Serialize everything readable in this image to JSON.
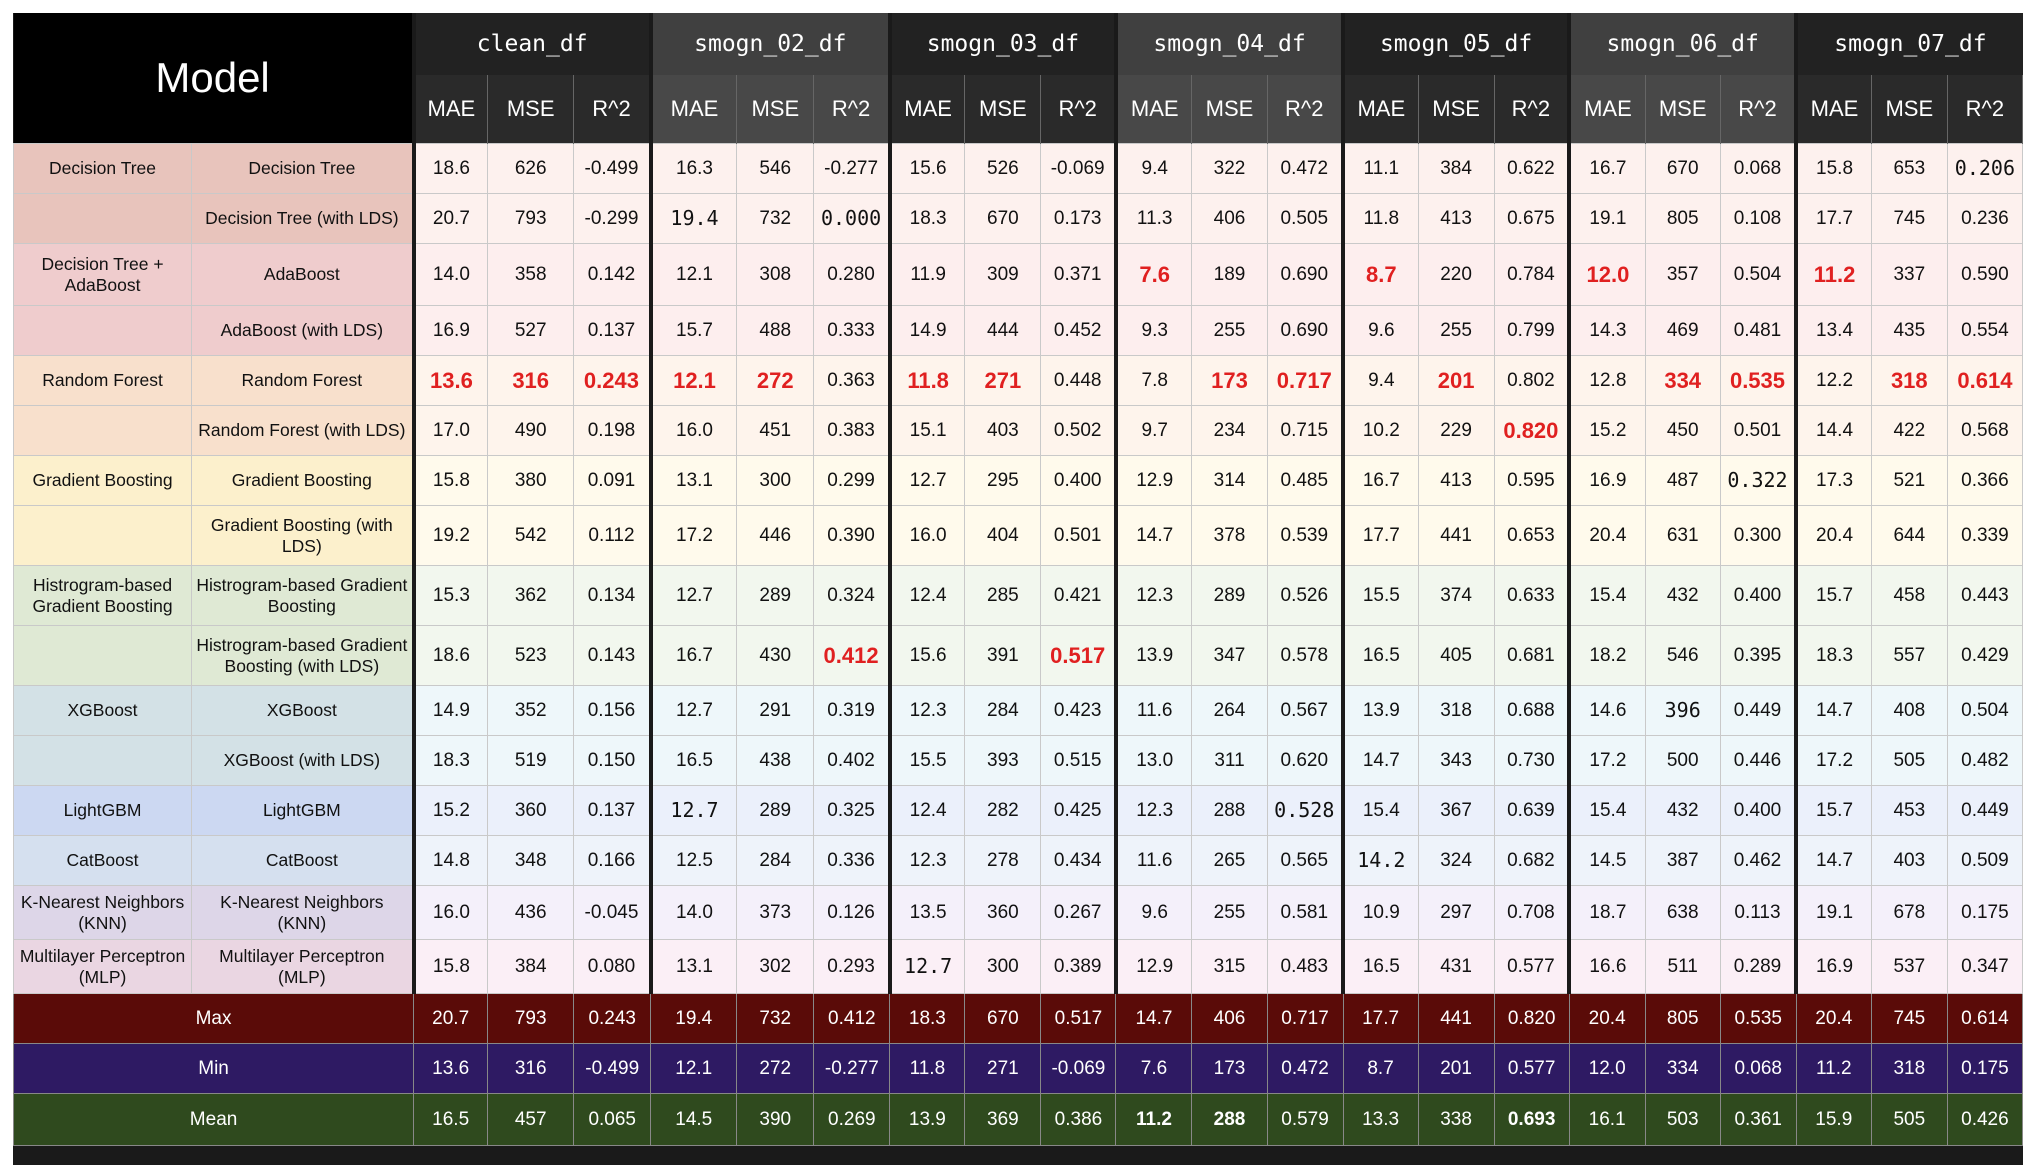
{
  "chart_data": {
    "type": "table",
    "header": {
      "model_label": "Model",
      "datasets": [
        "clean_df",
        "smogn_02_df",
        "smogn_03_df",
        "smogn_04_df",
        "smogn_05_df",
        "smogn_06_df",
        "smogn_07_df"
      ],
      "metrics": [
        "MAE",
        "MSE",
        "R^2"
      ]
    },
    "rows": [
      {
        "group": "Decision Tree",
        "model": "Decision Tree",
        "bg": "#e8c4bc",
        "cbg": "#fdf1ee",
        "values": [
          "18.6",
          "626",
          "-0.499",
          "16.3",
          "546",
          "-0.277",
          "15.6",
          "526",
          "-0.069",
          "9.4",
          "322",
          "0.472",
          "11.1",
          "384",
          "0.622",
          "16.7",
          "670",
          "0.068",
          "15.8",
          "653",
          "0.206"
        ]
      },
      {
        "group": "",
        "model": "Decision Tree (with LDS)",
        "bg": "#e8c4bc",
        "cbg": "#fdf1ee",
        "values": [
          "20.7",
          "793",
          "-0.299",
          "19.4",
          "732",
          "0.000",
          "18.3",
          "670",
          "0.173",
          "11.3",
          "406",
          "0.505",
          "11.8",
          "413",
          "0.675",
          "19.1",
          "805",
          "0.108",
          "17.7",
          "745",
          "0.236"
        ]
      },
      {
        "group": "Decision Tree + AdaBoost",
        "model": "AdaBoost",
        "bg": "#efcccd",
        "cbg": "#fdeeee",
        "values": [
          "14.0",
          "358",
          "0.142",
          "12.1",
          "308",
          "0.280",
          "11.9",
          "309",
          "0.371",
          "7.6",
          "189",
          "0.690",
          "8.7",
          "220",
          "0.784",
          "12.0",
          "357",
          "0.504",
          "11.2",
          "337",
          "0.590"
        ]
      },
      {
        "group": "",
        "model": "AdaBoost (with LDS)",
        "bg": "#efcccd",
        "cbg": "#fdeeee",
        "values": [
          "16.9",
          "527",
          "0.137",
          "15.7",
          "488",
          "0.333",
          "14.9",
          "444",
          "0.452",
          "9.3",
          "255",
          "0.690",
          "9.6",
          "255",
          "0.799",
          "14.3",
          "469",
          "0.481",
          "13.4",
          "435",
          "0.554"
        ]
      },
      {
        "group": "Random Forest",
        "model": "Random Forest",
        "bg": "#f8e0cc",
        "cbg": "#fef4ec",
        "values": [
          "13.6",
          "316",
          "0.243",
          "12.1",
          "272",
          "0.363",
          "11.8",
          "271",
          "0.448",
          "7.8",
          "173",
          "0.717",
          "9.4",
          "201",
          "0.802",
          "12.8",
          "334",
          "0.535",
          "12.2",
          "318",
          "0.614"
        ]
      },
      {
        "group": "",
        "model": "Random Forest (with LDS)",
        "bg": "#f8e0cc",
        "cbg": "#fef4ec",
        "values": [
          "17.0",
          "490",
          "0.198",
          "16.0",
          "451",
          "0.383",
          "15.1",
          "403",
          "0.502",
          "9.7",
          "234",
          "0.715",
          "10.2",
          "229",
          "0.820",
          "15.2",
          "450",
          "0.501",
          "14.4",
          "422",
          "0.568"
        ]
      },
      {
        "group": "Gradient Boosting",
        "model": "Gradient Boosting",
        "bg": "#fcf0cc",
        "cbg": "#fffaec",
        "values": [
          "15.8",
          "380",
          "0.091",
          "13.1",
          "300",
          "0.299",
          "12.7",
          "295",
          "0.400",
          "12.9",
          "314",
          "0.485",
          "16.7",
          "413",
          "0.595",
          "16.9",
          "487",
          "0.322",
          "17.3",
          "521",
          "0.366"
        ]
      },
      {
        "group": "",
        "model": "Gradient Boosting (with LDS)",
        "bg": "#fcf0cc",
        "cbg": "#fffaec",
        "values": [
          "19.2",
          "542",
          "0.112",
          "17.2",
          "446",
          "0.390",
          "16.0",
          "404",
          "0.501",
          "14.7",
          "378",
          "0.539",
          "17.7",
          "441",
          "0.653",
          "20.4",
          "631",
          "0.300",
          "20.4",
          "644",
          "0.339"
        ]
      },
      {
        "group": "Histrogram-based Gradient Boosting",
        "model": "Histrogram-based Gradient Boosting",
        "bg": "#dfe9d4",
        "cbg": "#f2f7ee",
        "values": [
          "15.3",
          "362",
          "0.134",
          "12.7",
          "289",
          "0.324",
          "12.4",
          "285",
          "0.421",
          "12.3",
          "289",
          "0.526",
          "15.5",
          "374",
          "0.633",
          "15.4",
          "432",
          "0.400",
          "15.7",
          "458",
          "0.443"
        ]
      },
      {
        "group": "",
        "model": "Histrogram-based Gradient Boosting (with LDS)",
        "bg": "#dfe9d4",
        "cbg": "#f2f7ee",
        "values": [
          "18.6",
          "523",
          "0.143",
          "16.7",
          "430",
          "0.412",
          "15.6",
          "391",
          "0.517",
          "13.9",
          "347",
          "0.578",
          "16.5",
          "405",
          "0.681",
          "18.2",
          "546",
          "0.395",
          "18.3",
          "557",
          "0.429"
        ]
      },
      {
        "group": "XGBoost",
        "model": "XGBoost",
        "bg": "#d3e1e6",
        "cbg": "#eef7fa",
        "values": [
          "14.9",
          "352",
          "0.156",
          "12.7",
          "291",
          "0.319",
          "12.3",
          "284",
          "0.423",
          "11.6",
          "264",
          "0.567",
          "13.9",
          "318",
          "0.688",
          "14.6",
          "396",
          "0.449",
          "14.7",
          "408",
          "0.504"
        ]
      },
      {
        "group": "",
        "model": "XGBoost (with LDS)",
        "bg": "#d3e1e6",
        "cbg": "#eef7fa",
        "values": [
          "18.3",
          "519",
          "0.150",
          "16.5",
          "438",
          "0.402",
          "15.5",
          "393",
          "0.515",
          "13.0",
          "311",
          "0.620",
          "14.7",
          "343",
          "0.730",
          "17.2",
          "500",
          "0.446",
          "17.2",
          "505",
          "0.482"
        ]
      },
      {
        "group": "LightGBM",
        "model": "LightGBM",
        "bg": "#ccd8f2",
        "cbg": "#ebf0fb",
        "values": [
          "15.2",
          "360",
          "0.137",
          "12.7",
          "289",
          "0.325",
          "12.4",
          "282",
          "0.425",
          "12.3",
          "288",
          "0.528",
          "15.4",
          "367",
          "0.639",
          "15.4",
          "432",
          "0.400",
          "15.7",
          "453",
          "0.449"
        ]
      },
      {
        "group": "CatBoost",
        "model": "CatBoost",
        "bg": "#d5e0ef",
        "cbg": "#eef3fa",
        "values": [
          "14.8",
          "348",
          "0.166",
          "12.5",
          "284",
          "0.336",
          "12.3",
          "278",
          "0.434",
          "11.6",
          "265",
          "0.565",
          "14.2",
          "324",
          "0.682",
          "14.5",
          "387",
          "0.462",
          "14.7",
          "403",
          "0.509"
        ]
      },
      {
        "group": "K-Nearest Neighbors (KNN)",
        "model": "K-Nearest Neighbors (KNN)",
        "bg": "#ddd6e8",
        "cbg": "#f4f0fa",
        "values": [
          "16.0",
          "436",
          "-0.045",
          "14.0",
          "373",
          "0.126",
          "13.5",
          "360",
          "0.267",
          "9.6",
          "255",
          "0.581",
          "10.9",
          "297",
          "0.708",
          "18.7",
          "638",
          "0.113",
          "19.1",
          "678",
          "0.175"
        ]
      },
      {
        "group": "Multilayer Perceptron (MLP)",
        "model": "Multilayer Perceptron (MLP)",
        "bg": "#ead6e2",
        "cbg": "#fbeff6",
        "values": [
          "15.8",
          "384",
          "0.080",
          "13.1",
          "302",
          "0.293",
          "12.7",
          "300",
          "0.389",
          "12.9",
          "315",
          "0.483",
          "16.5",
          "431",
          "0.577",
          "16.6",
          "511",
          "0.289",
          "16.9",
          "537",
          "0.347"
        ]
      }
    ],
    "summary": [
      {
        "label": "Max",
        "bg": "#5a0b08",
        "values": [
          "20.7",
          "793",
          "0.243",
          "19.4",
          "732",
          "0.412",
          "18.3",
          "670",
          "0.517",
          "14.7",
          "406",
          "0.717",
          "17.7",
          "441",
          "0.820",
          "20.4",
          "805",
          "0.535",
          "20.4",
          "745",
          "0.614"
        ]
      },
      {
        "label": "Min",
        "bg": "#2e1a63",
        "values": [
          "13.6",
          "316",
          "-0.499",
          "12.1",
          "272",
          "-0.277",
          "11.8",
          "271",
          "-0.069",
          "7.6",
          "173",
          "0.472",
          "8.7",
          "201",
          "0.577",
          "12.0",
          "334",
          "0.068",
          "11.2",
          "318",
          "0.175"
        ]
      },
      {
        "label": "Mean",
        "bg": "#2f4a1e",
        "values": [
          "16.5",
          "457",
          "0.065",
          "14.5",
          "390",
          "0.269",
          "13.9",
          "369",
          "0.386",
          "11.2",
          "288",
          "0.579",
          "13.3",
          "338",
          "0.693",
          "16.1",
          "503",
          "0.361",
          "15.9",
          "505",
          "0.426"
        ]
      }
    ],
    "highlights_red": [
      [
        2,
        9
      ],
      [
        2,
        12
      ],
      [
        2,
        15
      ],
      [
        2,
        18
      ],
      [
        4,
        0
      ],
      [
        4,
        1
      ],
      [
        4,
        2
      ],
      [
        4,
        3
      ],
      [
        4,
        4
      ],
      [
        4,
        6
      ],
      [
        4,
        7
      ],
      [
        4,
        10
      ],
      [
        4,
        11
      ],
      [
        4,
        13
      ],
      [
        4,
        16
      ],
      [
        4,
        17
      ],
      [
        4,
        19
      ],
      [
        4,
        20
      ],
      [
        5,
        14
      ],
      [
        9,
        5
      ],
      [
        9,
        8
      ]
    ],
    "mono_cells": [
      [
        0,
        20
      ],
      [
        1,
        3
      ],
      [
        1,
        5
      ],
      [
        6,
        17
      ],
      [
        10,
        16
      ],
      [
        12,
        3
      ],
      [
        12,
        11
      ],
      [
        13,
        12
      ],
      [
        15,
        6
      ]
    ],
    "bold_summary_cells": [
      [
        2,
        9
      ],
      [
        2,
        10
      ],
      [
        2,
        14
      ]
    ],
    "highlight_color": "#e02020"
  }
}
